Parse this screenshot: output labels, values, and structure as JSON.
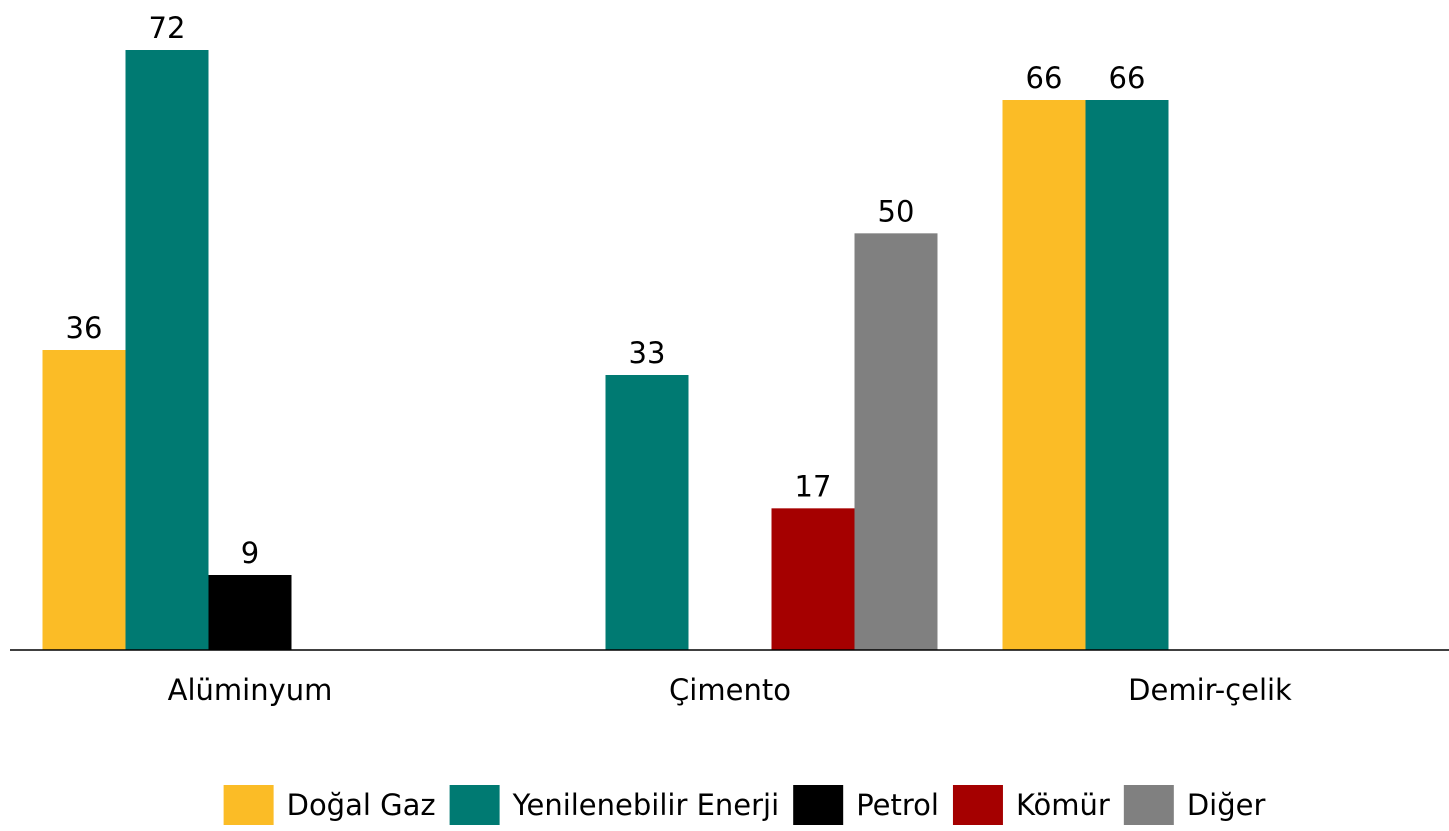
{
  "chart_data": {
    "type": "bar",
    "categories": [
      "Alüminyum",
      "Çimento",
      "Demir-çelik"
    ],
    "series": [
      {
        "name": "Doğal Gaz",
        "color": "#fbbc26",
        "values": [
          36,
          null,
          66
        ]
      },
      {
        "name": "Yenilenebilir Enerji",
        "color": "#007a72",
        "values": [
          72,
          33,
          66
        ]
      },
      {
        "name": "Petrol",
        "color": "#000000",
        "values": [
          9,
          null,
          null
        ]
      },
      {
        "name": "Kömür",
        "color": "#a50000",
        "values": [
          null,
          17,
          null
        ]
      },
      {
        "name": "Diğer",
        "color": "#808080",
        "values": [
          null,
          50,
          null
        ]
      }
    ],
    "ylim": [
      0,
      78
    ],
    "legend": "bottom"
  }
}
